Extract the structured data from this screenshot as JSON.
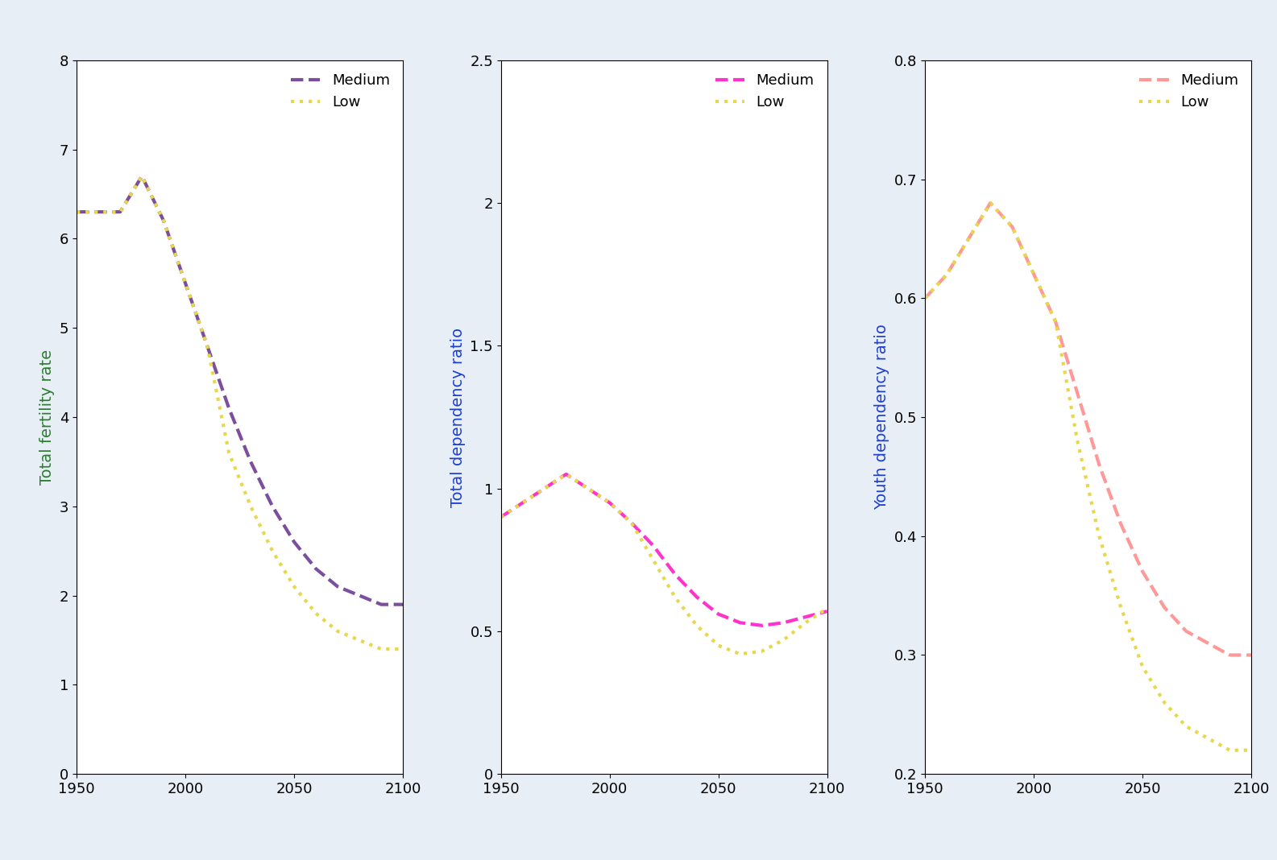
{
  "chart_data": [
    {
      "type": "line",
      "y_label": "Total fertility rate",
      "x": [
        1950,
        1960,
        1970,
        1980,
        1990,
        2000,
        2010,
        2020,
        2030,
        2040,
        2050,
        2060,
        2070,
        2080,
        2090,
        2100
      ],
      "series": [
        {
          "name": "Medium",
          "color": "#7b4f9d",
          "line_style": "dashed",
          "values": [
            6.3,
            6.3,
            6.3,
            6.7,
            6.2,
            5.5,
            4.8,
            4.1,
            3.5,
            3.0,
            2.6,
            2.3,
            2.1,
            2.0,
            1.9,
            1.9
          ]
        },
        {
          "name": "Low",
          "color": "#e6d84a",
          "line_style": "dotted",
          "values": [
            6.3,
            6.3,
            6.3,
            6.7,
            6.2,
            5.5,
            4.8,
            3.6,
            3.0,
            2.5,
            2.1,
            1.8,
            1.6,
            1.5,
            1.4,
            1.4
          ]
        }
      ],
      "xlim": [
        1950,
        2100
      ],
      "xticks": [
        1950,
        2000,
        2050,
        2100
      ],
      "ylim": [
        0,
        8
      ],
      "yticks": [
        0,
        1,
        2,
        3,
        4,
        5,
        6,
        7,
        8
      ],
      "legend": "upper right"
    },
    {
      "type": "line",
      "y_label": "Total dependency ratio",
      "x": [
        1950,
        1960,
        1970,
        1980,
        1990,
        2000,
        2010,
        2020,
        2030,
        2040,
        2050,
        2060,
        2070,
        2080,
        2090,
        2100
      ],
      "series": [
        {
          "name": "Medium",
          "color": "#ff33cc",
          "line_style": "dashed",
          "values": [
            0.9,
            0.95,
            1.0,
            1.05,
            1.0,
            0.95,
            0.88,
            0.8,
            0.7,
            0.62,
            0.56,
            0.53,
            0.52,
            0.53,
            0.55,
            0.57
          ]
        },
        {
          "name": "Low",
          "color": "#e6d84a",
          "line_style": "dotted",
          "values": [
            0.9,
            0.95,
            1.0,
            1.05,
            1.0,
            0.95,
            0.88,
            0.75,
            0.62,
            0.52,
            0.45,
            0.42,
            0.43,
            0.47,
            0.53,
            0.58
          ]
        }
      ],
      "xlim": [
        1950,
        2100
      ],
      "xticks": [
        1950,
        2000,
        2050,
        2100
      ],
      "ylim": [
        0,
        2.5
      ],
      "yticks": [
        0,
        0.5,
        1,
        1.5,
        2,
        2.5
      ],
      "legend": "upper right"
    },
    {
      "type": "line",
      "y_label": "Youth dependency ratio",
      "x": [
        1950,
        1960,
        1970,
        1980,
        1990,
        2000,
        2010,
        2020,
        2030,
        2040,
        2050,
        2060,
        2070,
        2080,
        2090,
        2100
      ],
      "series": [
        {
          "name": "Medium",
          "color": "#ff9999",
          "line_style": "dashed",
          "values": [
            0.6,
            0.62,
            0.65,
            0.68,
            0.66,
            0.62,
            0.58,
            0.52,
            0.46,
            0.41,
            0.37,
            0.34,
            0.32,
            0.31,
            0.3,
            0.3
          ]
        },
        {
          "name": "Low",
          "color": "#e6d84a",
          "line_style": "dotted",
          "values": [
            0.6,
            0.62,
            0.65,
            0.68,
            0.66,
            0.62,
            0.58,
            0.48,
            0.4,
            0.34,
            0.29,
            0.26,
            0.24,
            0.23,
            0.22,
            0.22
          ]
        }
      ],
      "xlim": [
        1950,
        2100
      ],
      "xticks": [
        1950,
        2000,
        2050,
        2100
      ],
      "ylim": [
        0.2,
        0.8
      ],
      "yticks": [
        0.2,
        0.3,
        0.4,
        0.5,
        0.6,
        0.7,
        0.8
      ],
      "legend": "upper right"
    }
  ]
}
